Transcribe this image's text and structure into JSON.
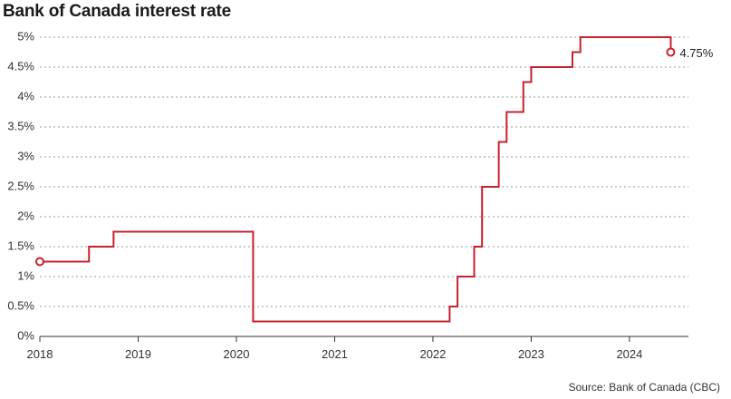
{
  "chart_title": "Bank of Canada interest rate",
  "source": "Source: Bank of Canada (CBC)",
  "colors": {
    "line": "#c8202f",
    "grid": "#9a9a9a",
    "axis": "#333333"
  },
  "chart_data": {
    "type": "line",
    "step": true,
    "title": "Bank of Canada interest rate",
    "xlabel": "",
    "ylabel": "",
    "xlim": [
      2018.0,
      2024.6
    ],
    "ylim": [
      0,
      5
    ],
    "grid": true,
    "y_ticks": [
      "0%",
      "0.5%",
      "1%",
      "1.5%",
      "2%",
      "2.5%",
      "3%",
      "3.5%",
      "4%",
      "4.5%",
      "5%"
    ],
    "x_ticks": [
      "2018",
      "2019",
      "2020",
      "2021",
      "2022",
      "2023",
      "2024"
    ],
    "series": [
      {
        "color": "#c8202f",
        "points": [
          [
            2018.0,
            1.25
          ],
          [
            2018.5,
            1.5
          ],
          [
            2018.75,
            1.75
          ],
          [
            2020.17,
            0.25
          ],
          [
            2022.17,
            0.5
          ],
          [
            2022.25,
            1.0
          ],
          [
            2022.42,
            1.5
          ],
          [
            2022.5,
            2.5
          ],
          [
            2022.67,
            3.25
          ],
          [
            2022.75,
            3.75
          ],
          [
            2022.92,
            4.25
          ],
          [
            2023.0,
            4.5
          ],
          [
            2023.42,
            4.75
          ],
          [
            2023.5,
            5.0
          ],
          [
            2024.42,
            4.75
          ]
        ]
      }
    ],
    "annotations": [
      {
        "text": "4.75%"
      }
    ]
  }
}
